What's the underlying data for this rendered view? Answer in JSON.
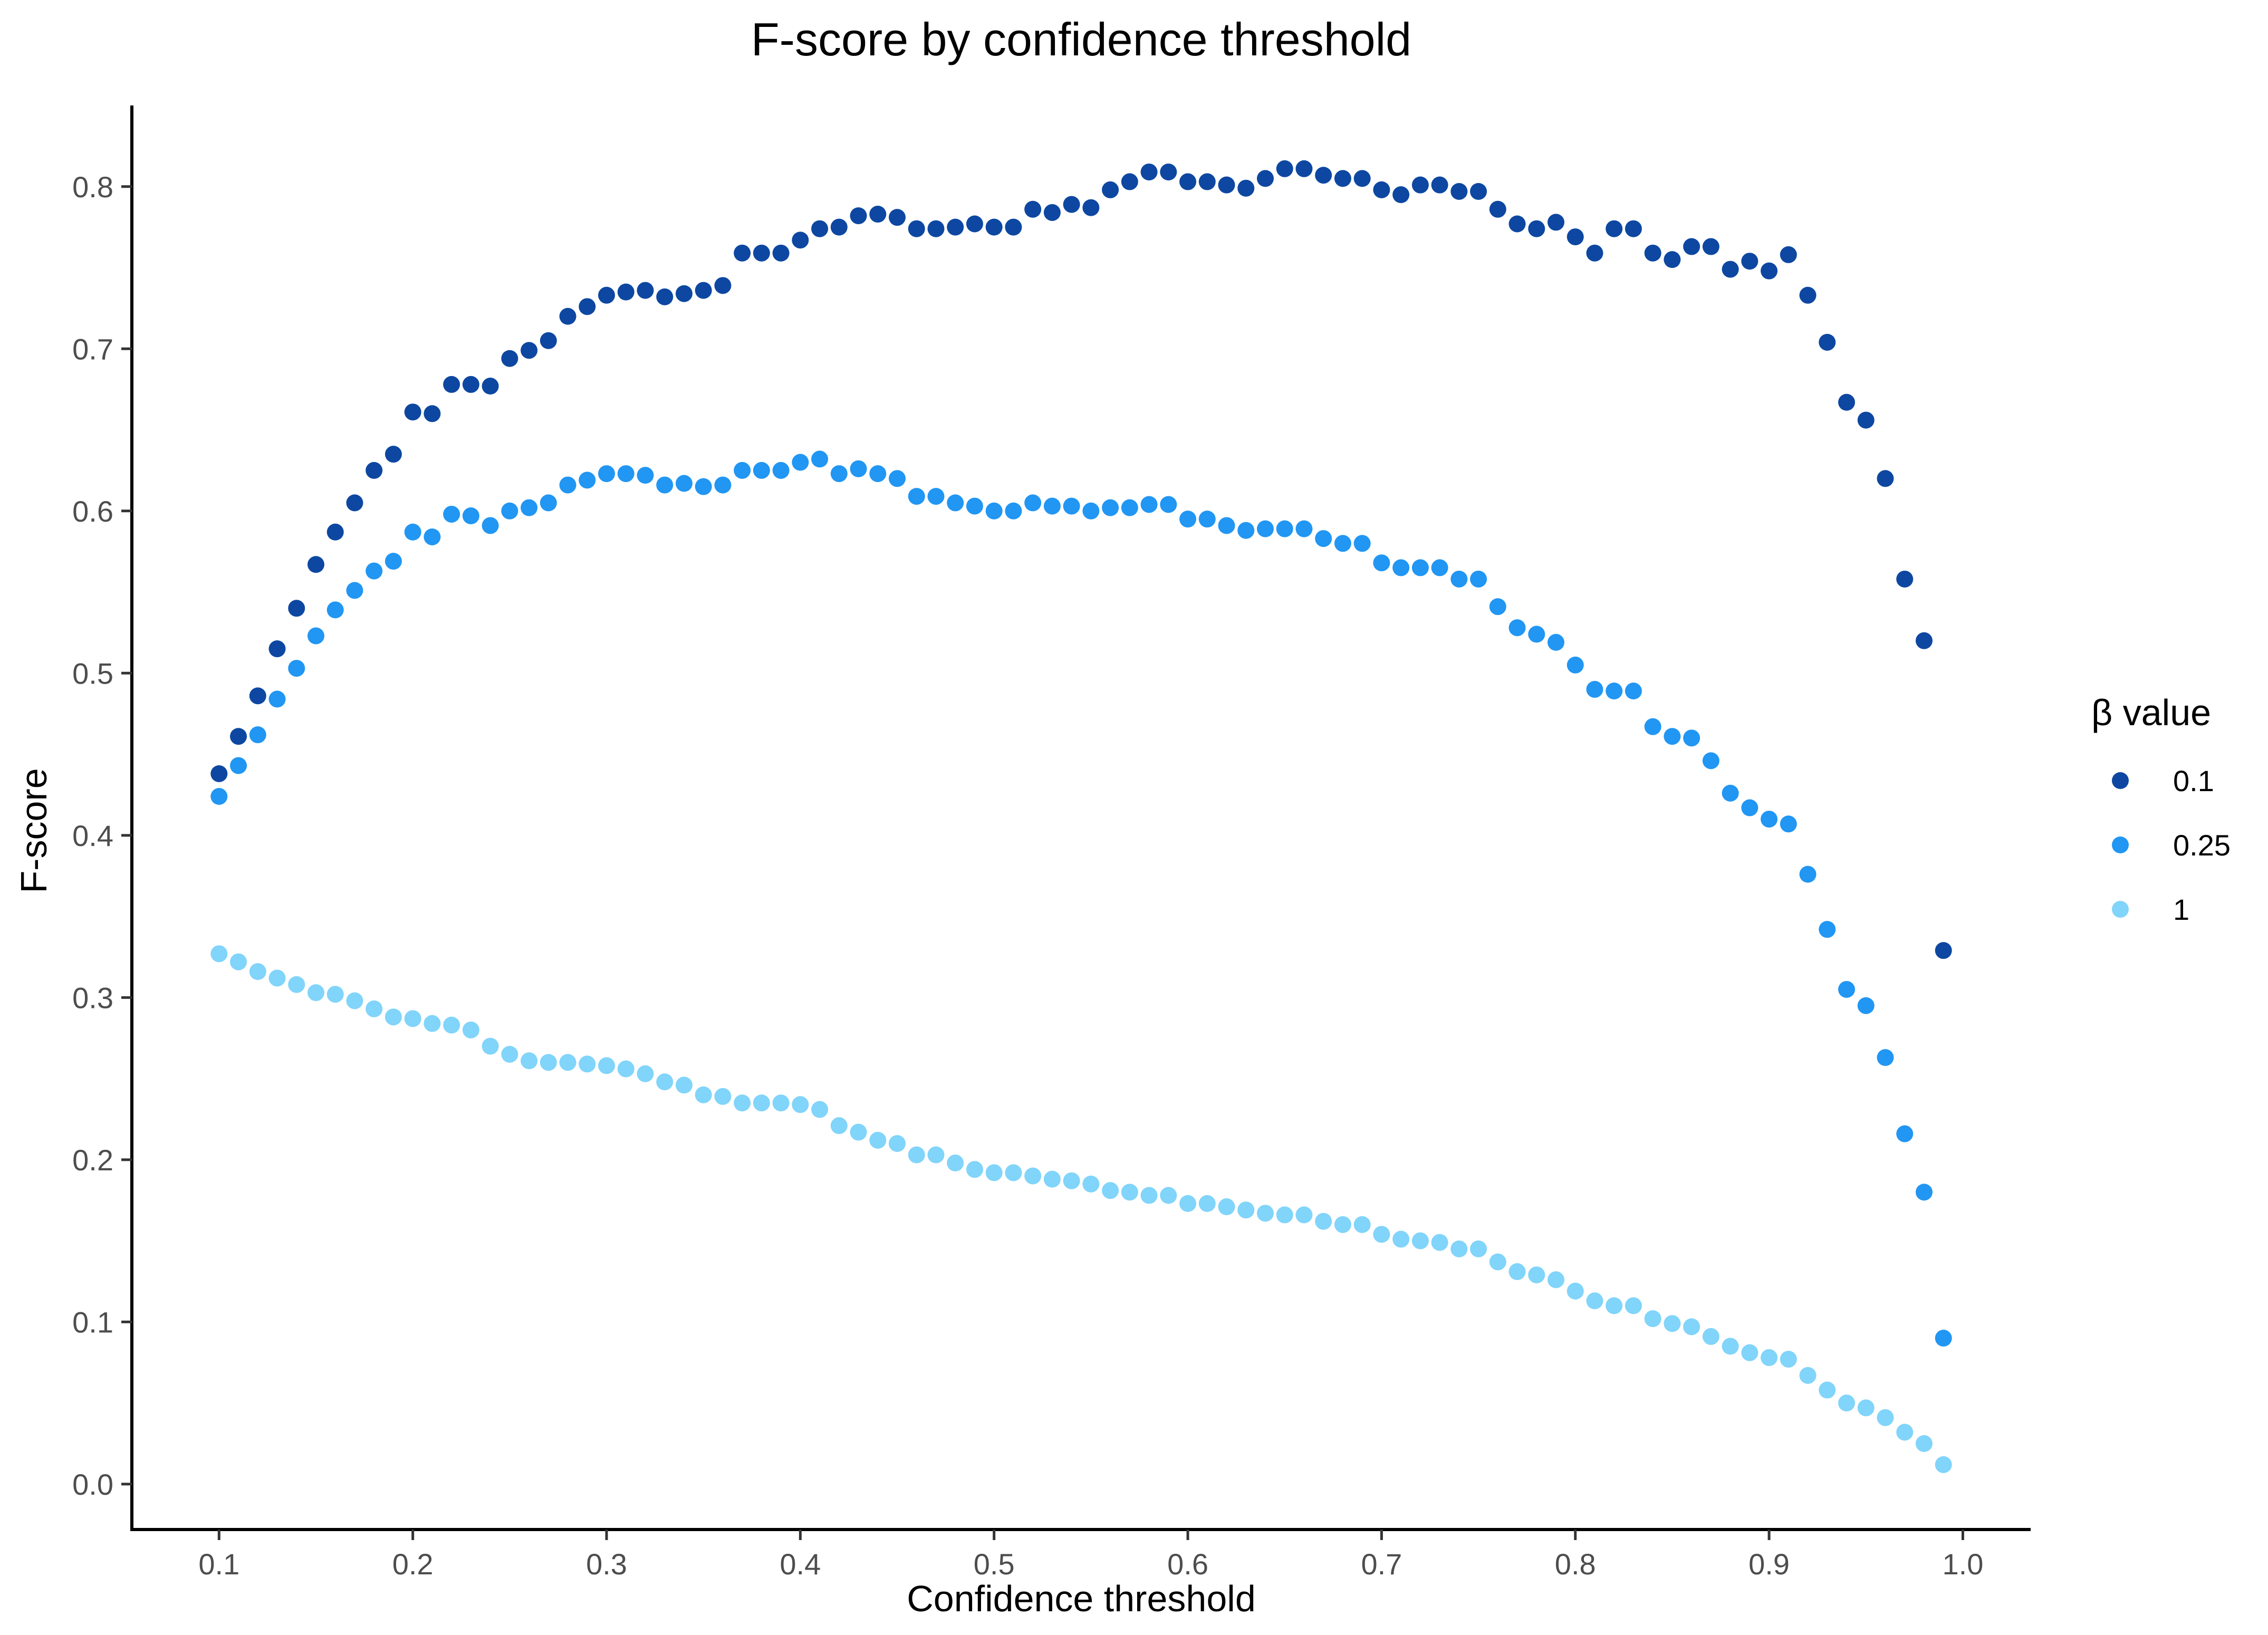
{
  "chart_data": {
    "type": "scatter",
    "title": "F-score by confidence threshold",
    "xlabel": "Confidence threshold",
    "ylabel": "F-score",
    "xlim": [
      0.055,
      1.035
    ],
    "ylim": [
      -0.028,
      0.85
    ],
    "x_ticks": [
      0.1,
      0.2,
      0.3,
      0.4,
      0.5,
      0.6,
      0.7,
      0.8,
      0.9,
      1.0
    ],
    "x_tick_labels": [
      "0.1",
      "0.2",
      "0.3",
      "0.4",
      "0.5",
      "0.6",
      "0.7",
      "0.8",
      "0.9",
      "1.0"
    ],
    "y_ticks": [
      0.0,
      0.1,
      0.2,
      0.3,
      0.4,
      0.5,
      0.6,
      0.7,
      0.8
    ],
    "y_tick_labels": [
      "0.0",
      "0.1",
      "0.2",
      "0.3",
      "0.4",
      "0.5",
      "0.6",
      "0.7",
      "0.8"
    ],
    "grid": false,
    "legend": {
      "title": "β value",
      "position": "right"
    },
    "x": [
      0.1,
      0.11,
      0.12,
      0.13,
      0.14,
      0.15,
      0.16,
      0.17,
      0.18,
      0.19,
      0.2,
      0.21,
      0.22,
      0.23,
      0.24,
      0.25,
      0.26,
      0.27,
      0.28,
      0.29,
      0.3,
      0.31,
      0.32,
      0.33,
      0.34,
      0.35,
      0.36,
      0.37,
      0.38,
      0.39,
      0.4,
      0.41,
      0.42,
      0.43,
      0.44,
      0.45,
      0.46,
      0.47,
      0.48,
      0.49,
      0.5,
      0.51,
      0.52,
      0.53,
      0.54,
      0.55,
      0.56,
      0.57,
      0.58,
      0.59,
      0.6,
      0.61,
      0.62,
      0.63,
      0.64,
      0.65,
      0.66,
      0.67,
      0.68,
      0.69,
      0.7,
      0.71,
      0.72,
      0.73,
      0.74,
      0.75,
      0.76,
      0.77,
      0.78,
      0.79,
      0.8,
      0.81,
      0.82,
      0.83,
      0.84,
      0.85,
      0.86,
      0.87,
      0.88,
      0.89,
      0.9,
      0.91,
      0.92,
      0.93,
      0.94,
      0.95,
      0.96,
      0.97,
      0.98,
      0.99
    ],
    "series": [
      {
        "name": "0.1",
        "color": "#0D47A1",
        "values": [
          0.438,
          0.461,
          0.486,
          0.515,
          0.54,
          0.567,
          0.587,
          0.605,
          0.625,
          0.635,
          0.661,
          0.66,
          0.678,
          0.678,
          0.677,
          0.694,
          0.699,
          0.705,
          0.72,
          0.726,
          0.733,
          0.735,
          0.736,
          0.732,
          0.734,
          0.736,
          0.739,
          0.759,
          0.759,
          0.759,
          0.767,
          0.774,
          0.775,
          0.782,
          0.783,
          0.781,
          0.774,
          0.774,
          0.775,
          0.777,
          0.775,
          0.775,
          0.786,
          0.784,
          0.789,
          0.787,
          0.798,
          0.803,
          0.809,
          0.809,
          0.803,
          0.803,
          0.801,
          0.799,
          0.805,
          0.811,
          0.811,
          0.807,
          0.805,
          0.805,
          0.798,
          0.795,
          0.801,
          0.801,
          0.797,
          0.797,
          0.786,
          0.777,
          0.774,
          0.778,
          0.769,
          0.759,
          0.774,
          0.774,
          0.759,
          0.755,
          0.763,
          0.763,
          0.749,
          0.754,
          0.748,
          0.758,
          0.733,
          0.704,
          0.667,
          0.656,
          0.62,
          0.558,
          0.52,
          0.329
        ]
      },
      {
        "name": "0.25",
        "color": "#2196F3",
        "values": [
          0.424,
          0.443,
          0.462,
          0.484,
          0.503,
          0.523,
          0.539,
          0.551,
          0.563,
          0.569,
          0.587,
          0.584,
          0.598,
          0.597,
          0.591,
          0.6,
          0.602,
          0.605,
          0.616,
          0.619,
          0.623,
          0.623,
          0.622,
          0.616,
          0.617,
          0.615,
          0.616,
          0.625,
          0.625,
          0.625,
          0.63,
          0.632,
          0.623,
          0.626,
          0.623,
          0.62,
          0.609,
          0.609,
          0.605,
          0.603,
          0.6,
          0.6,
          0.605,
          0.603,
          0.603,
          0.6,
          0.602,
          0.602,
          0.604,
          0.604,
          0.595,
          0.595,
          0.591,
          0.588,
          0.589,
          0.589,
          0.589,
          0.583,
          0.58,
          0.58,
          0.568,
          0.565,
          0.565,
          0.565,
          0.558,
          0.558,
          0.541,
          0.528,
          0.524,
          0.519,
          0.505,
          0.49,
          0.489,
          0.489,
          0.467,
          0.461,
          0.46,
          0.446,
          0.426,
          0.417,
          0.41,
          0.407,
          0.376,
          0.342,
          0.305,
          0.295,
          0.263,
          0.216,
          0.18,
          0.09
        ]
      },
      {
        "name": "1",
        "color": "#81D4FA",
        "values": [
          0.327,
          0.322,
          0.316,
          0.312,
          0.308,
          0.303,
          0.302,
          0.298,
          0.293,
          0.288,
          0.287,
          0.284,
          0.283,
          0.28,
          0.27,
          0.265,
          0.261,
          0.26,
          0.26,
          0.259,
          0.258,
          0.256,
          0.253,
          0.248,
          0.246,
          0.24,
          0.239,
          0.235,
          0.235,
          0.235,
          0.234,
          0.231,
          0.221,
          0.217,
          0.212,
          0.21,
          0.203,
          0.203,
          0.198,
          0.194,
          0.192,
          0.192,
          0.19,
          0.188,
          0.187,
          0.185,
          0.181,
          0.18,
          0.178,
          0.178,
          0.173,
          0.173,
          0.171,
          0.169,
          0.167,
          0.166,
          0.166,
          0.162,
          0.16,
          0.16,
          0.154,
          0.151,
          0.15,
          0.149,
          0.145,
          0.145,
          0.137,
          0.131,
          0.129,
          0.126,
          0.119,
          0.113,
          0.11,
          0.11,
          0.102,
          0.099,
          0.097,
          0.091,
          0.085,
          0.081,
          0.078,
          0.077,
          0.067,
          0.058,
          0.05,
          0.047,
          0.041,
          0.032,
          0.025,
          0.012
        ]
      }
    ]
  }
}
